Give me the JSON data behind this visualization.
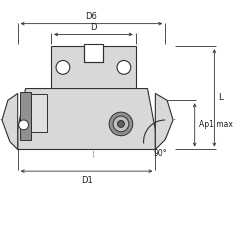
{
  "bg_color": "#ffffff",
  "line_color": "#303030",
  "dim_color": "#303030",
  "text_color": "#202020",
  "body_fill": "#d8d8d8",
  "body_edge": "#303030",
  "shadow_fill": "#b0b0b0",
  "dark_fill": "#888888",
  "insert_fill": "#909090",
  "white_fill": "#e8e8e8",
  "labels": {
    "D6": "D6",
    "D": "D",
    "D1": "D1",
    "L": "L",
    "Ap1max": "Ap1 max",
    "angle": "90°"
  }
}
